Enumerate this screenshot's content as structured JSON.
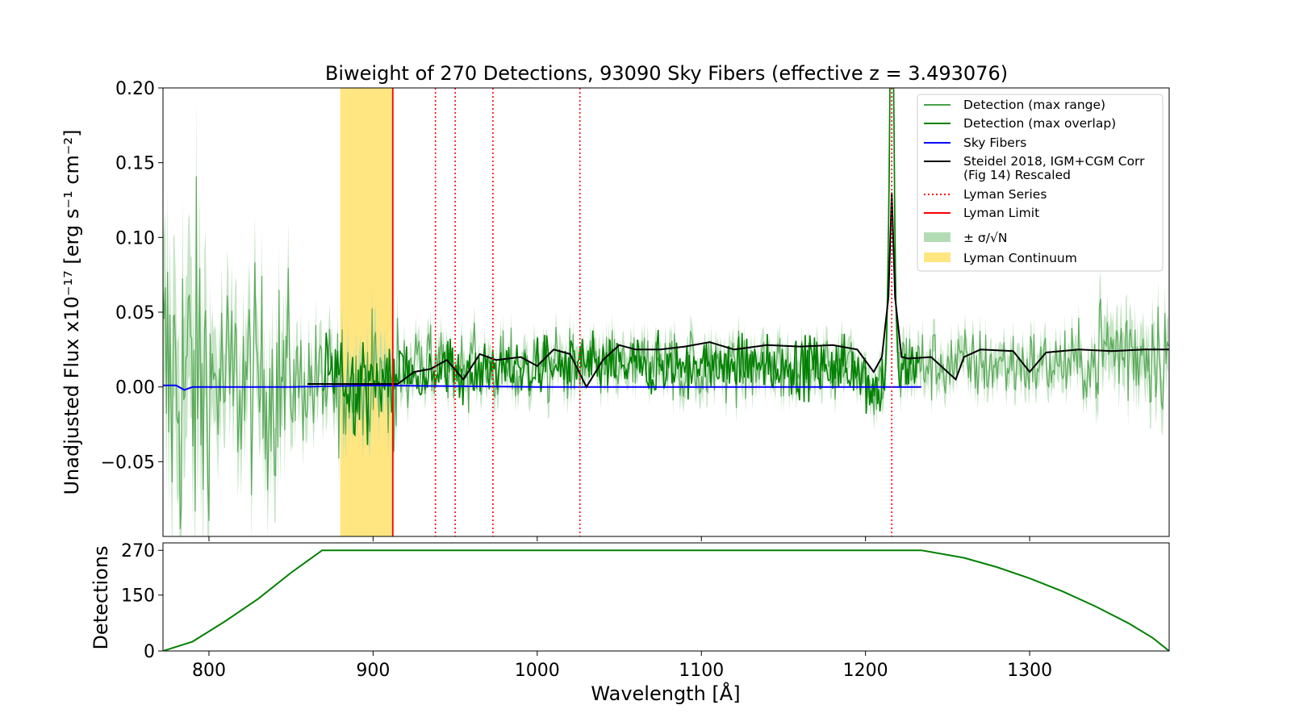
{
  "chart_data": [
    {
      "type": "line",
      "title": "Biweight of 270 Detections, 93090 Sky Fibers (effective z = 3.493076)",
      "xlabel": "Wavelength [Å]",
      "ylabel": "Unadjusted Flux x10⁻¹⁷ [erg s⁻¹ cm⁻²]",
      "xlim": [
        772,
        1385
      ],
      "ylim": [
        -0.1,
        0.2
      ],
      "yticks": [
        -0.05,
        0.0,
        0.05,
        0.1,
        0.15,
        0.2
      ],
      "ytick_labels": [
        "−0.05",
        "0.00",
        "0.05",
        "0.10",
        "0.15",
        "0.20"
      ],
      "legend_position": "top-right",
      "legend": [
        {
          "label": "Detection (max range)",
          "color": "#4aa14a",
          "style": "line"
        },
        {
          "label": "Detection (max overlap)",
          "color": "#008000",
          "style": "line"
        },
        {
          "label": "Sky Fibers",
          "color": "#0000ff",
          "style": "line"
        },
        {
          "label": "Steidel 2018, IGM+CGM Corr",
          "label2": "(Fig 14) Rescaled",
          "color": "#000000",
          "style": "line"
        },
        {
          "label": "Lyman Series",
          "color": "#ff0000",
          "style": "dotted"
        },
        {
          "label": "Lyman Limit",
          "color": "#ff0000",
          "style": "line"
        },
        {
          "label": "± σ/√N",
          "color": "#b4dcb4",
          "style": "patch"
        },
        {
          "label": "Lyman Continuum",
          "color": "#ffe680",
          "style": "patch"
        }
      ],
      "lyman_continuum_band": [
        880,
        912
      ],
      "lyman_limit": 912,
      "lyman_series": [
        938,
        950,
        973,
        1026,
        1216
      ],
      "series": [
        {
          "name": "Sky Fibers",
          "color": "#0000ff",
          "x": [
            772,
            780,
            785,
            790,
            800,
            850,
            900,
            1000,
            1100,
            1200,
            1234
          ],
          "y": [
            0.001,
            0.001,
            -0.002,
            0.0,
            0.0,
            0.0,
            0.001,
            0.0,
            0.0,
            0.0,
            0.0
          ]
        },
        {
          "name": "Steidel 2018, IGM+CGM Corr (Fig 14) Rescaled",
          "color": "#000000",
          "x": [
            860,
            880,
            900,
            915,
            925,
            935,
            945,
            955,
            965,
            975,
            990,
            1000,
            1010,
            1020,
            1030,
            1040,
            1050,
            1060,
            1075,
            1090,
            1105,
            1120,
            1140,
            1160,
            1180,
            1195,
            1205,
            1210,
            1214,
            1216,
            1218,
            1222,
            1226,
            1240,
            1255,
            1260,
            1270,
            1290,
            1300,
            1310,
            1330,
            1350,
            1370,
            1385
          ],
          "y": [
            0.002,
            0.002,
            0.002,
            0.002,
            0.01,
            0.012,
            0.018,
            0.005,
            0.022,
            0.018,
            0.02,
            0.014,
            0.025,
            0.022,
            0.0,
            0.018,
            0.028,
            0.025,
            0.025,
            0.027,
            0.03,
            0.025,
            0.028,
            0.027,
            0.028,
            0.025,
            0.01,
            0.02,
            0.06,
            0.13,
            0.06,
            0.02,
            0.019,
            0.02,
            0.005,
            0.02,
            0.025,
            0.024,
            0.01,
            0.023,
            0.025,
            0.024,
            0.025,
            0.025
          ]
        }
      ],
      "lyman_alpha_peak": {
        "x": 1216,
        "y": 0.2
      }
    },
    {
      "type": "line",
      "ylabel": "Detections",
      "xlabel": "Wavelength [Å]",
      "xlim": [
        772,
        1385
      ],
      "ylim": [
        0,
        290
      ],
      "yticks": [
        0,
        150,
        270
      ],
      "xticks": [
        800,
        900,
        1000,
        1100,
        1200,
        1300
      ],
      "series": [
        {
          "name": "Detections",
          "color": "#008000",
          "x": [
            772,
            790,
            810,
            830,
            850,
            869,
            1234,
            1260,
            1280,
            1300,
            1320,
            1340,
            1360,
            1375,
            1385
          ],
          "y": [
            0,
            25,
            80,
            140,
            210,
            270,
            270,
            250,
            225,
            195,
            160,
            120,
            75,
            35,
            0
          ]
        }
      ]
    }
  ]
}
